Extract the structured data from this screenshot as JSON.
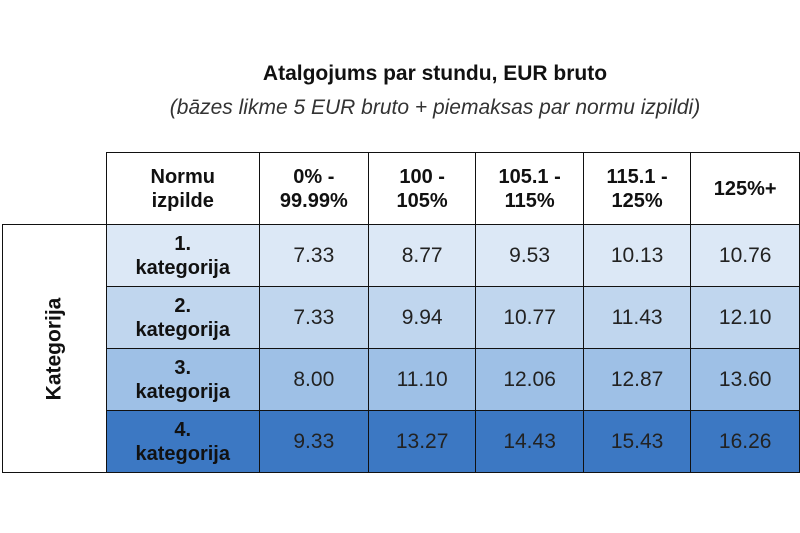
{
  "title": "Atalgojums par stundu, EUR bruto",
  "subtitle": "(bāzes likme 5 EUR bruto + piemaksas par normu izpildi)",
  "table": {
    "side_label": "Kategorija",
    "corner_label_line1": "Normu",
    "corner_label_line2": "izpilde",
    "columns": [
      {
        "line1": "0% -",
        "line2": "99.99%"
      },
      {
        "line1": "100 -",
        "line2": "105%"
      },
      {
        "line1": "105.1 -",
        "line2": "115%"
      },
      {
        "line1": "115.1 -",
        "line2": "125%"
      },
      {
        "line1": "125%+",
        "line2": ""
      }
    ],
    "rows": [
      {
        "line1": "1.",
        "line2": "kategorija",
        "values": [
          "7.33",
          "8.77",
          "9.53",
          "10.13",
          "10.76"
        ]
      },
      {
        "line1": "2.",
        "line2": "kategorija",
        "values": [
          "7.33",
          "9.94",
          "10.77",
          "11.43",
          "12.10"
        ]
      },
      {
        "line1": "3.",
        "line2": "kategorija",
        "values": [
          "8.00",
          "11.10",
          "12.06",
          "12.87",
          "13.60"
        ]
      },
      {
        "line1": "4.",
        "line2": "kategorija",
        "values": [
          "9.33",
          "13.27",
          "14.43",
          "15.43",
          "16.26"
        ]
      }
    ]
  }
}
